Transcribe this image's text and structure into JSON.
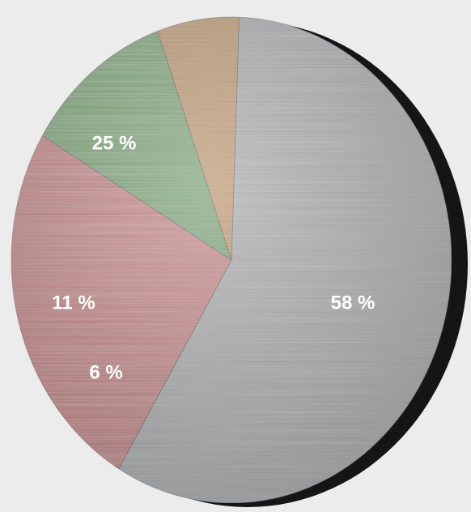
{
  "chart_data": {
    "type": "pie",
    "categories": [
      "",
      "",
      "",
      ""
    ],
    "values": [
      58,
      25,
      11,
      6
    ],
    "labels": [
      "58 %",
      "25 %",
      "11 %",
      "6 %"
    ],
    "title": "",
    "legend": "none",
    "colors": [
      "#a3a5a8",
      "#c07a7a",
      "#6f9c68",
      "#b8905e"
    ]
  }
}
